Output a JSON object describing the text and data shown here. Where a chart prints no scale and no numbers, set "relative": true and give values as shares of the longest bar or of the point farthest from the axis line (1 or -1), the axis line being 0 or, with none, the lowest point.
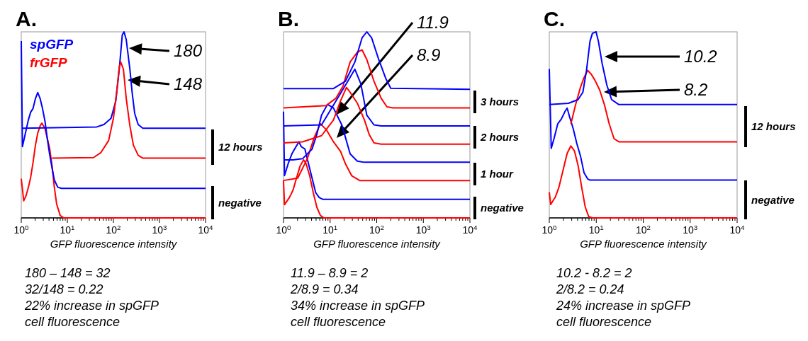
{
  "chart_data": [
    {
      "type": "line",
      "title": "A.",
      "xlabel": "GFP fluorescence intensity",
      "log": "x",
      "relative": true,
      "legend": "top left",
      "xlim": [
        1,
        10000
      ],
      "xticks": [
        {
          "value": 1,
          "label": "10$^{0}$"
        },
        {
          "value": 2,
          "label": null
        },
        {
          "value": 3,
          "label": null
        },
        {
          "value": 4,
          "label": null
        },
        {
          "value": 5,
          "label": null
        },
        {
          "value": 6,
          "label": null
        },
        {
          "value": 7,
          "label": null
        },
        {
          "value": 8,
          "label": null
        },
        {
          "value": 9,
          "label": null
        },
        {
          "value": 10,
          "label": "10$^{1}$"
        },
        {
          "value": 20,
          "label": null
        },
        {
          "value": 30,
          "label": null
        },
        {
          "value": 40,
          "label": null
        },
        {
          "value": 50,
          "label": null
        },
        {
          "value": 60,
          "label": null
        },
        {
          "value": 70,
          "label": null
        },
        {
          "value": 80,
          "label": null
        },
        {
          "value": 90,
          "label": null
        },
        {
          "value": 100,
          "label": "10$^{2}$"
        },
        {
          "value": 200,
          "label": null
        },
        {
          "value": 300,
          "label": null
        },
        {
          "value": 400,
          "label": null
        },
        {
          "value": 500,
          "label": null
        },
        {
          "value": 600,
          "label": null
        },
        {
          "value": 700,
          "label": null
        },
        {
          "value": 800,
          "label": null
        },
        {
          "value": 900,
          "label": null
        },
        {
          "value": 1000,
          "label": "10$^{3}$"
        },
        {
          "value": 2000,
          "label": null
        },
        {
          "value": 3000,
          "label": null
        },
        {
          "value": 4000,
          "label": null
        },
        {
          "value": 5000,
          "label": null
        },
        {
          "value": 6000,
          "label": null
        },
        {
          "value": 7000,
          "label": null
        },
        {
          "value": 8000,
          "label": null
        },
        {
          "value": 9000,
          "label": null
        },
        {
          "value": 10000,
          "label": "10$^{4}$"
        }
      ],
      "series": [
        {
          "color": "#ff0000",
          "x": [
            1,
            1.13,
            1.27,
            1.43,
            1.6,
            1.8,
            2.03,
            2.28,
            2.57,
            2.8,
            3.26,
            3.66,
            4.12,
            4.64,
            5.22,
            5.88,
            7,
            8.39,
            10000
          ],
          "values": [
            0.211,
            0.092,
            0.119,
            0.165,
            0.218,
            0.297,
            0.39,
            0.456,
            0.495,
            0.509,
            0.482,
            0.429,
            0.376,
            0.284,
            0.165,
            0.073,
            0.013,
            0,
            0
          ]
        },
        {
          "color": "#0000ff",
          "x": [
            1,
            1.06,
            1.2,
            1.43,
            1.6,
            1.8,
            2.03,
            2.28,
            2.57,
            2.89,
            3.26,
            3.66,
            4.12,
            4.64,
            5.22,
            6.2,
            7.45,
            10000
          ],
          "values": [
            0.951,
            0.383,
            0.443,
            0.528,
            0.568,
            0.588,
            0.641,
            0.674,
            0.641,
            0.588,
            0.522,
            0.429,
            0.343,
            0.271,
            0.204,
            0.165,
            0.159,
            0.159
          ]
        },
        {
          "name": "spGFP",
          "color": "#0000ff",
          "x": [
            1.06,
            43.6,
            62.3,
            88.8,
            112.5,
            134,
            156,
            170,
            190,
            228,
            257,
            290,
            345,
            435,
            10000
          ],
          "values": [
            0.482,
            0.489,
            0.502,
            0.535,
            0.627,
            0.799,
            0.984,
            1,
            0.958,
            0.799,
            0.667,
            0.561,
            0.502,
            0.482,
            0.482
          ]
        },
        {
          "name": "frGFP",
          "color": "#ff0000",
          "x": [
            4.64,
            37,
            53,
            78.9,
            100,
            120,
            134,
            145,
            165,
            190,
            228,
            272,
            345,
            435,
            10000
          ],
          "values": [
            0.321,
            0.324,
            0.35,
            0.416,
            0.535,
            0.694,
            0.812,
            0.836,
            0.799,
            0.641,
            0.495,
            0.39,
            0.337,
            0.321,
            0.321
          ]
        }
      ],
      "annotations": [
        "180",
        "148",
        "12 hours",
        "negative",
        "180 – 148 = 32",
        "32/148 = 0.22",
        "22% increase in spGFP",
        "cell fluorescence"
      ]
    },
    {
      "type": "line",
      "title": "B.",
      "xlabel": "GFP fluorescence intensity",
      "log": "x",
      "relative": true,
      "xlim": [
        1,
        10000
      ],
      "xticks": [
        {
          "value": 1,
          "label": "10$^{0}$"
        },
        {
          "value": 2,
          "label": null
        },
        {
          "value": 3,
          "label": null
        },
        {
          "value": 4,
          "label": null
        },
        {
          "value": 5,
          "label": null
        },
        {
          "value": 6,
          "label": null
        },
        {
          "value": 7,
          "label": null
        },
        {
          "value": 8,
          "label": null
        },
        {
          "value": 9,
          "label": null
        },
        {
          "value": 10,
          "label": "10$^{1}$"
        },
        {
          "value": 20,
          "label": null
        },
        {
          "value": 30,
          "label": null
        },
        {
          "value": 40,
          "label": null
        },
        {
          "value": 50,
          "label": null
        },
        {
          "value": 60,
          "label": null
        },
        {
          "value": 70,
          "label": null
        },
        {
          "value": 80,
          "label": null
        },
        {
          "value": 90,
          "label": null
        },
        {
          "value": 100,
          "label": "10$^{2}$"
        },
        {
          "value": 200,
          "label": null
        },
        {
          "value": 300,
          "label": null
        },
        {
          "value": 400,
          "label": null
        },
        {
          "value": 500,
          "label": null
        },
        {
          "value": 600,
          "label": null
        },
        {
          "value": 700,
          "label": null
        },
        {
          "value": 800,
          "label": null
        },
        {
          "value": 900,
          "label": null
        },
        {
          "value": 1000,
          "label": "10$^{3}$"
        },
        {
          "value": 2000,
          "label": null
        },
        {
          "value": 3000,
          "label": null
        },
        {
          "value": 4000,
          "label": null
        },
        {
          "value": 5000,
          "label": null
        },
        {
          "value": 6000,
          "label": null
        },
        {
          "value": 7000,
          "label": null
        },
        {
          "value": 8000,
          "label": null
        },
        {
          "value": 9000,
          "label": null
        },
        {
          "value": 10000,
          "label": "10$^{4}$"
        }
      ],
      "series": [
        {
          "color": "#ff0000",
          "x": [
            1,
            1.05,
            1.34,
            1.6,
            1.9,
            2.27,
            2.7,
            3.05,
            3.64,
            4.35,
            5.18,
            6.2,
            7.37,
            10000
          ],
          "values": [
            0.201,
            0.071,
            0.11,
            0.149,
            0.214,
            0.279,
            0.312,
            0.292,
            0.227,
            0.136,
            0.058,
            0.013,
            0,
            0
          ]
        },
        {
          "color": "#0000ff",
          "x": [
            1,
            1.05,
            1.26,
            1.51,
            1.8,
            2.14,
            2.4,
            2.88,
            3.43,
            4.1,
            4.9,
            5.82,
            6.9,
            10000
          ],
          "values": [
            0.571,
            0.227,
            0.292,
            0.344,
            0.377,
            0.409,
            0.383,
            0.37,
            0.292,
            0.214,
            0.136,
            0.11,
            0.1,
            0.1
          ]
        },
        {
          "color": "#ff0000",
          "x": [
            1,
            2.02,
            3.24,
            4.6,
            6.2,
            8.29,
            11.8,
            16.8,
            21.2,
            29,
            43.1,
            10000
          ],
          "values": [
            0.201,
            0.214,
            0.318,
            0.435,
            0.506,
            0.474,
            0.409,
            0.357,
            0.292,
            0.227,
            0.201,
            0.201
          ]
        },
        {
          "color": "#0000ff",
          "x": [
            1,
            1.6,
            2.56,
            4.1,
            5.18,
            6.55,
            8.8,
            11.8,
            14.9,
            17.8,
            21.2,
            26.9,
            38.3,
            54.5,
            10000
          ],
          "values": [
            0.312,
            0.312,
            0.318,
            0.37,
            0.448,
            0.552,
            0.61,
            0.591,
            0.539,
            0.5,
            0.435,
            0.344,
            0.305,
            0.299,
            0.299
          ]
        },
        {
          "color": "#ff0000",
          "x": [
            1,
            2.56,
            6.55,
            11.8,
            16.8,
            22.4,
            26.9,
            38.3,
            54.5,
            69,
            87.4,
            124.5,
            10000
          ],
          "values": [
            0.403,
            0.409,
            0.442,
            0.526,
            0.63,
            0.701,
            0.675,
            0.617,
            0.526,
            0.448,
            0.403,
            0.396,
            0.396
          ]
        },
        {
          "color": "#0000ff",
          "x": [
            1,
            6.55,
            23.9,
            34,
            45.6,
            61.4,
            87.4,
            124.5,
            10000
          ],
          "values": [
            0.494,
            0.5,
            0.734,
            0.799,
            0.721,
            0.552,
            0.5,
            0.494,
            0.494
          ]
        },
        {
          "color": "#ff0000",
          "x": [
            1,
            8.29,
            13.3,
            18.9,
            26.9,
            38.3,
            48.5,
            61.4,
            87.4,
            124.5,
            166,
            224,
            10000
          ],
          "values": [
            0.591,
            0.604,
            0.643,
            0.708,
            0.838,
            0.89,
            0.903,
            0.851,
            0.734,
            0.643,
            0.597,
            0.591,
            0.591
          ]
        },
        {
          "color": "#0000ff",
          "x": [
            1,
            11.8,
            21.2,
            34,
            48.5,
            61.4,
            77.7,
            110.6,
            158,
            200,
            10000
          ],
          "values": [
            0.695,
            0.695,
            0.734,
            0.838,
            0.968,
            1,
            0.968,
            0.851,
            0.747,
            0.697,
            0.691
          ]
        }
      ],
      "annotations": [
        "11.9",
        "8.9",
        "3 hours",
        "2 hours",
        "1 hour",
        "negative",
        "11.9 – 8.9 = 2",
        "2/8.9 = 0.34",
        "34% increase in spGFP",
        "cell fluorescence"
      ]
    },
    {
      "type": "line",
      "title": "C.",
      "xlabel": "GFP fluorescence intensity",
      "log": "x",
      "relative": true,
      "xlim": [
        1,
        10000
      ],
      "xticks": [
        {
          "value": 1,
          "label": "10$^{0}$"
        },
        {
          "value": 2,
          "label": null
        },
        {
          "value": 3,
          "label": null
        },
        {
          "value": 4,
          "label": null
        },
        {
          "value": 5,
          "label": null
        },
        {
          "value": 6,
          "label": null
        },
        {
          "value": 7,
          "label": null
        },
        {
          "value": 8,
          "label": null
        },
        {
          "value": 9,
          "label": null
        },
        {
          "value": 10,
          "label": "10$^{1}$"
        },
        {
          "value": 20,
          "label": null
        },
        {
          "value": 30,
          "label": null
        },
        {
          "value": 40,
          "label": null
        },
        {
          "value": 50,
          "label": null
        },
        {
          "value": 60,
          "label": null
        },
        {
          "value": 70,
          "label": null
        },
        {
          "value": 80,
          "label": null
        },
        {
          "value": 90,
          "label": null
        },
        {
          "value": 100,
          "label": "10$^{2}$"
        },
        {
          "value": 200,
          "label": null
        },
        {
          "value": 300,
          "label": null
        },
        {
          "value": 400,
          "label": null
        },
        {
          "value": 500,
          "label": null
        },
        {
          "value": 600,
          "label": null
        },
        {
          "value": 700,
          "label": null
        },
        {
          "value": 800,
          "label": null
        },
        {
          "value": 900,
          "label": null
        },
        {
          "value": 1000,
          "label": "10$^{3}$"
        },
        {
          "value": 2000,
          "label": null
        },
        {
          "value": 3000,
          "label": null
        },
        {
          "value": 4000,
          "label": null
        },
        {
          "value": 5000,
          "label": null
        },
        {
          "value": 6000,
          "label": null
        },
        {
          "value": 7000,
          "label": null
        },
        {
          "value": 8000,
          "label": null
        },
        {
          "value": 9000,
          "label": null
        },
        {
          "value": 10000,
          "label": "10$^{4}$"
        }
      ],
      "series": [
        {
          "color": "#ff0000",
          "x": [
            1,
            1.07,
            1.34,
            1.6,
            2.02,
            2.4,
            2.88,
            3.43,
            4.1,
            4.9,
            5.82,
            6.9,
            8.29,
            10000
          ],
          "values": [
            0.138,
            0.072,
            0.111,
            0.164,
            0.269,
            0.347,
            0.387,
            0.36,
            0.282,
            0.164,
            0.059,
            0.007,
            0,
            0
          ]
        },
        {
          "color": "#0000ff",
          "x": [
            1,
            1.1,
            1.26,
            1.51,
            1.8,
            2.14,
            2.4,
            2.7,
            3.24,
            3.85,
            4.6,
            5.5,
            6.55,
            7.37,
            10000
          ],
          "values": [
            0.8,
            0.374,
            0.426,
            0.505,
            0.531,
            0.57,
            0.59,
            0.544,
            0.478,
            0.4,
            0.334,
            0.242,
            0.21,
            0.203,
            0.203
          ]
        },
        {
          "color": "#ff0000",
          "x": [
            2.88,
            3.64,
            4.6,
            5.5,
            6.55,
            7.8,
            9.32,
            11.8,
            14.9,
            18.9,
            23.9,
            30.3,
            10000
          ],
          "values": [
            0.505,
            0.609,
            0.701,
            0.754,
            0.793,
            0.773,
            0.741,
            0.688,
            0.609,
            0.505,
            0.426,
            0.409,
            0.409
          ]
        },
        {
          "color": "#0000ff",
          "x": [
            1,
            2.56,
            4.1,
            5.18,
            6.2,
            7.37,
            8.29,
            9.9,
            11.1,
            13.3,
            16.8,
            21.2,
            30.3,
            10000
          ],
          "values": [
            0.609,
            0.616,
            0.636,
            0.675,
            0.793,
            0.95,
            0.992,
            1,
            0.95,
            0.832,
            0.714,
            0.636,
            0.609,
            0.609
          ]
        }
      ],
      "annotations": [
        "10.2",
        "8.2",
        "12 hours",
        "negative",
        "10.2 - 8.2 = 2",
        "2/8.2 = 0.24",
        "24% increase in spGFP",
        "cell fluorescence"
      ]
    }
  ]
}
